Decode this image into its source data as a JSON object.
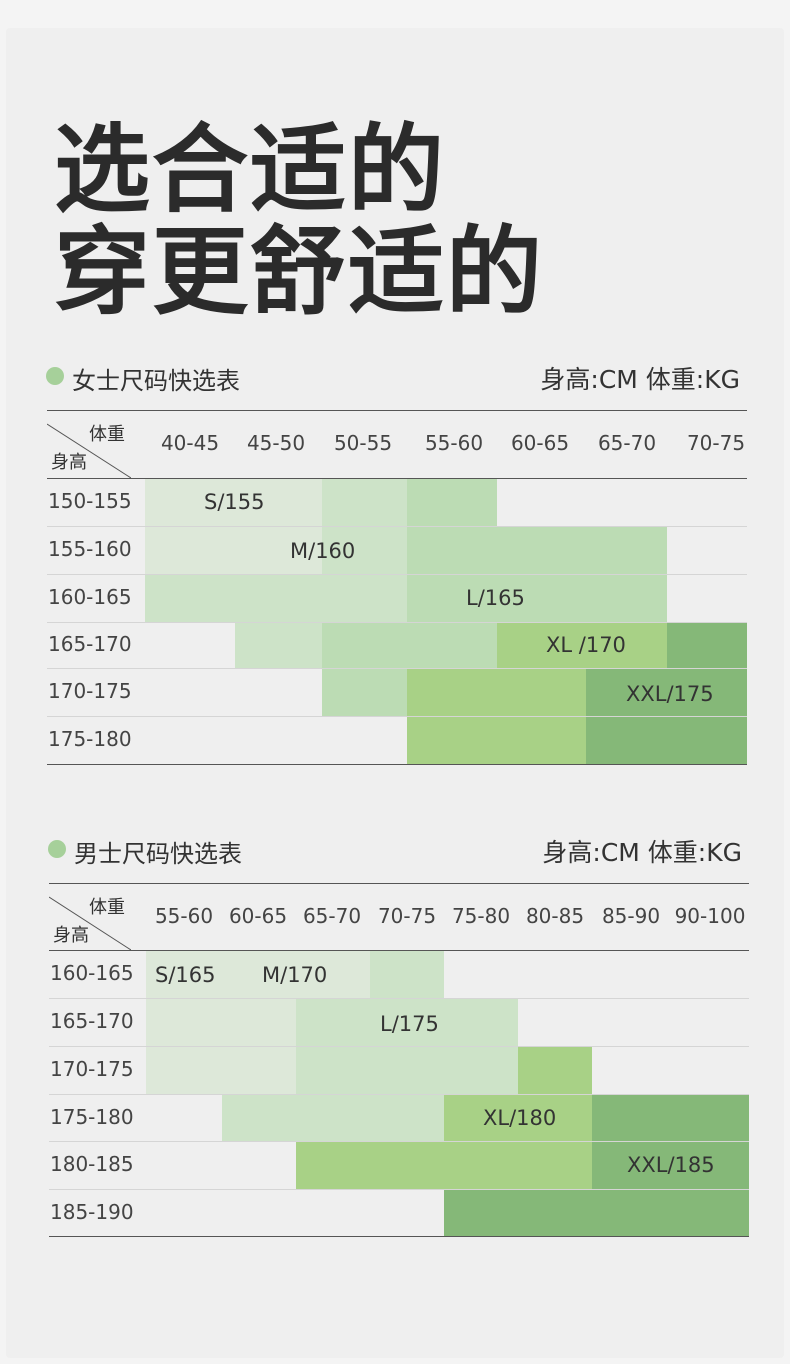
{
  "headline": {
    "line1": "选合适的",
    "line2": "穿更舒适的"
  },
  "women": {
    "title": "女士尺码快选表",
    "units": "身高:CM   体重:KG",
    "corner_weight": "体重",
    "corner_height": "身高",
    "weight_cols": [
      "40-45",
      "45-50",
      "50-55",
      "55-60",
      "60-65",
      "65-70",
      "70-75"
    ],
    "height_rows": [
      "150-155",
      "155-160",
      "160-165",
      "165-170",
      "170-175",
      "175-180"
    ],
    "sizes": [
      "S/155",
      "M/160",
      "L/165",
      "XL /170",
      "XXL/175"
    ]
  },
  "men": {
    "title": "男士尺码快选表",
    "units": "身高:CM   体重:KG",
    "corner_weight": "体重",
    "corner_height": "身高",
    "weight_cols": [
      "55-60",
      "60-65",
      "65-70",
      "70-75",
      "75-80",
      "80-85",
      "85-90",
      "90-100"
    ],
    "height_rows": [
      "160-165",
      "165-170",
      "170-175",
      "175-180",
      "180-185",
      "185-190"
    ],
    "sizes": [
      "S/165",
      "M/170",
      "L/175",
      "XL/180",
      "XXL/185"
    ]
  },
  "colors": {
    "c1": "#dde8d9",
    "c2": "#cde3c8",
    "c3": "#bcdcb4",
    "c4": "#a8d186",
    "c5": "#85b878",
    "dot": "#a6d09a"
  }
}
